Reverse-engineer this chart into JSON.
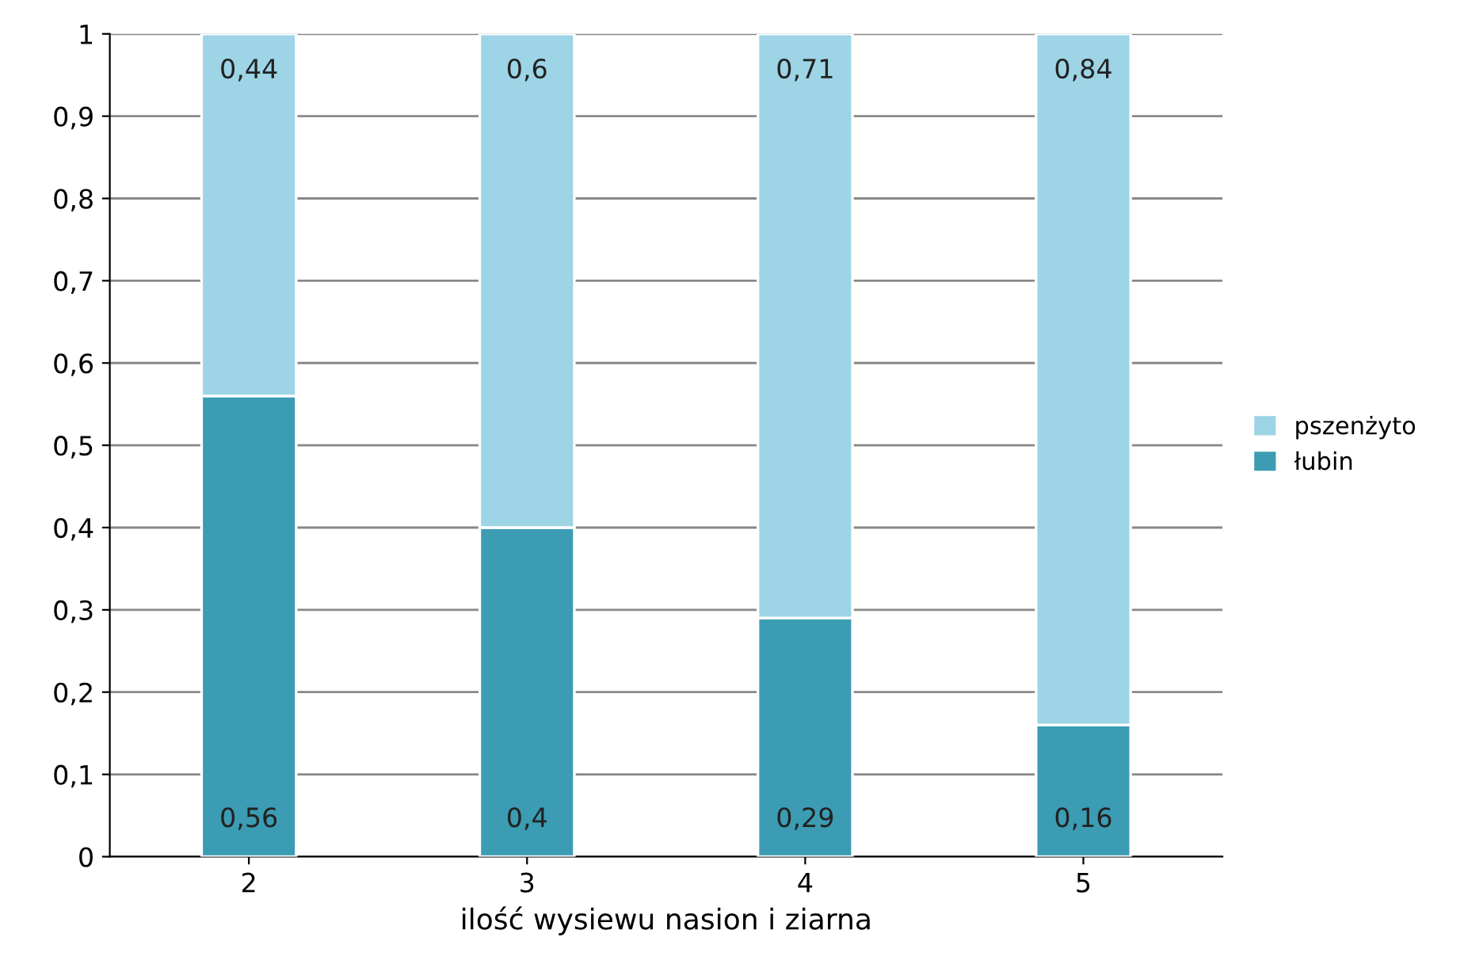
{
  "chart_data": {
    "type": "bar",
    "stacked": true,
    "xlabel": "ilość wysiewu nasion i ziarna",
    "categories": [
      "2",
      "3",
      "4",
      "5"
    ],
    "series": [
      {
        "name": "łubin",
        "color": "#3b9cb3",
        "values": [
          0.56,
          0.4,
          0.29,
          0.16
        ],
        "value_labels": [
          "0,56",
          "0,4",
          "0,29",
          "0,16"
        ]
      },
      {
        "name": "pszenżyto",
        "color": "#9dd4e6",
        "values": [
          0.44,
          0.6,
          0.71,
          0.84
        ],
        "value_labels": [
          "0,44",
          "0,6",
          "0,71",
          "0,84"
        ]
      }
    ],
    "ylim": [
      0,
      1
    ],
    "yticks": [
      0,
      {
        "value": 0.1,
        "label": "0,1"
      },
      {
        "value": 0.2,
        "label": "0,2"
      },
      {
        "value": 0.3,
        "label": "0,3"
      },
      {
        "value": 0.4,
        "label": "0,4"
      },
      {
        "value": 0.5,
        "label": "0,5"
      },
      {
        "value": 0.6,
        "label": "0,6"
      },
      {
        "value": 0.7,
        "label": "0,7"
      },
      {
        "value": 0.8,
        "label": "0,8"
      },
      {
        "value": 0.9,
        "label": "0,9"
      },
      1
    ],
    "grid": "y",
    "legend": "right"
  }
}
